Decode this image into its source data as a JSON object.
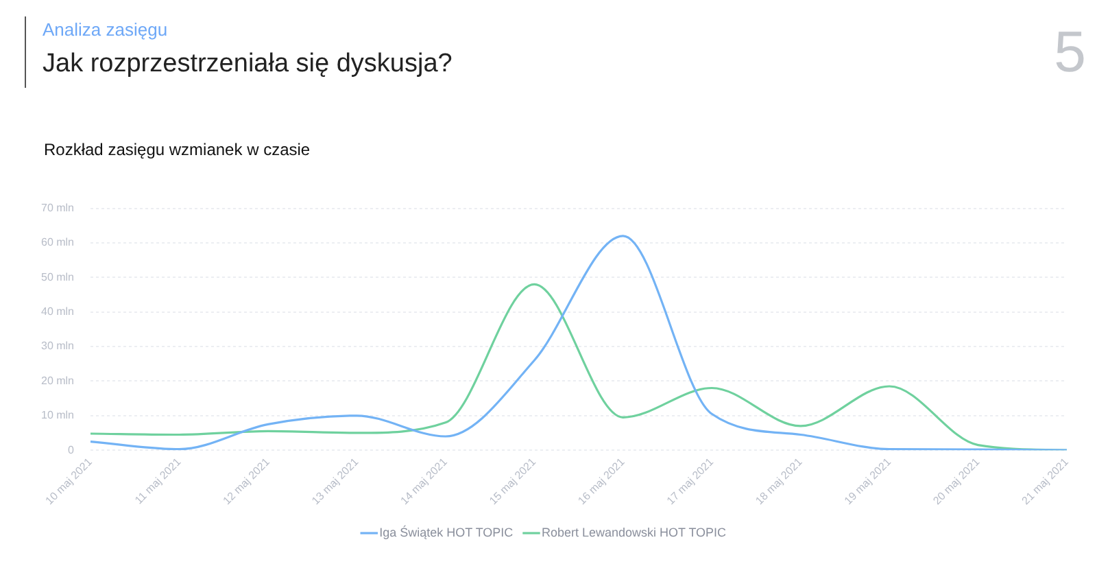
{
  "chart_data": {
    "type": "line",
    "title": "Rozkład zasięgu wzmianek w czasie",
    "annotations": [
      "Analiza zasięgu",
      "Jak rozprzestrzeniała się dyskusja?",
      "5"
    ],
    "categories": [
      "10 maj 2021",
      "11 maj 2021",
      "12 maj 2021",
      "13 maj 2021",
      "14 maj 2021",
      "15 maj 2021",
      "16 maj 2021",
      "17 maj 2021",
      "18 maj 2021",
      "19 maj 2021",
      "20 maj 2021",
      "21 maj 2021"
    ],
    "series": [
      {
        "name": "Iga Świątek HOT TOPIC",
        "color": "#73b3f5",
        "values": [
          2.5,
          0.3,
          7.5,
          10,
          4,
          26,
          62,
          10.5,
          4.5,
          0.3,
          0.2,
          0
        ]
      },
      {
        "name": "Robert Lewandowski HOT TOPIC",
        "color": "#6fd19e",
        "values": [
          4.8,
          4.5,
          5.5,
          5,
          8,
          48,
          9.5,
          18,
          7,
          18.5,
          1.5,
          0
        ]
      }
    ],
    "ylim": [
      0,
      70
    ],
    "yticks": [
      0,
      {
        "value": 10,
        "label": "10 mln"
      },
      {
        "value": 20,
        "label": "20 mln"
      },
      {
        "value": 30,
        "label": "30 mln"
      },
      {
        "value": 40,
        "label": "40 mln"
      },
      {
        "value": 50,
        "label": "50 mln"
      },
      {
        "value": 60,
        "label": "60 mln"
      },
      {
        "value": 70,
        "label": "70 mln"
      }
    ],
    "grid": "y",
    "legend": "bottom",
    "marker": "none",
    "line_style": "solid"
  }
}
